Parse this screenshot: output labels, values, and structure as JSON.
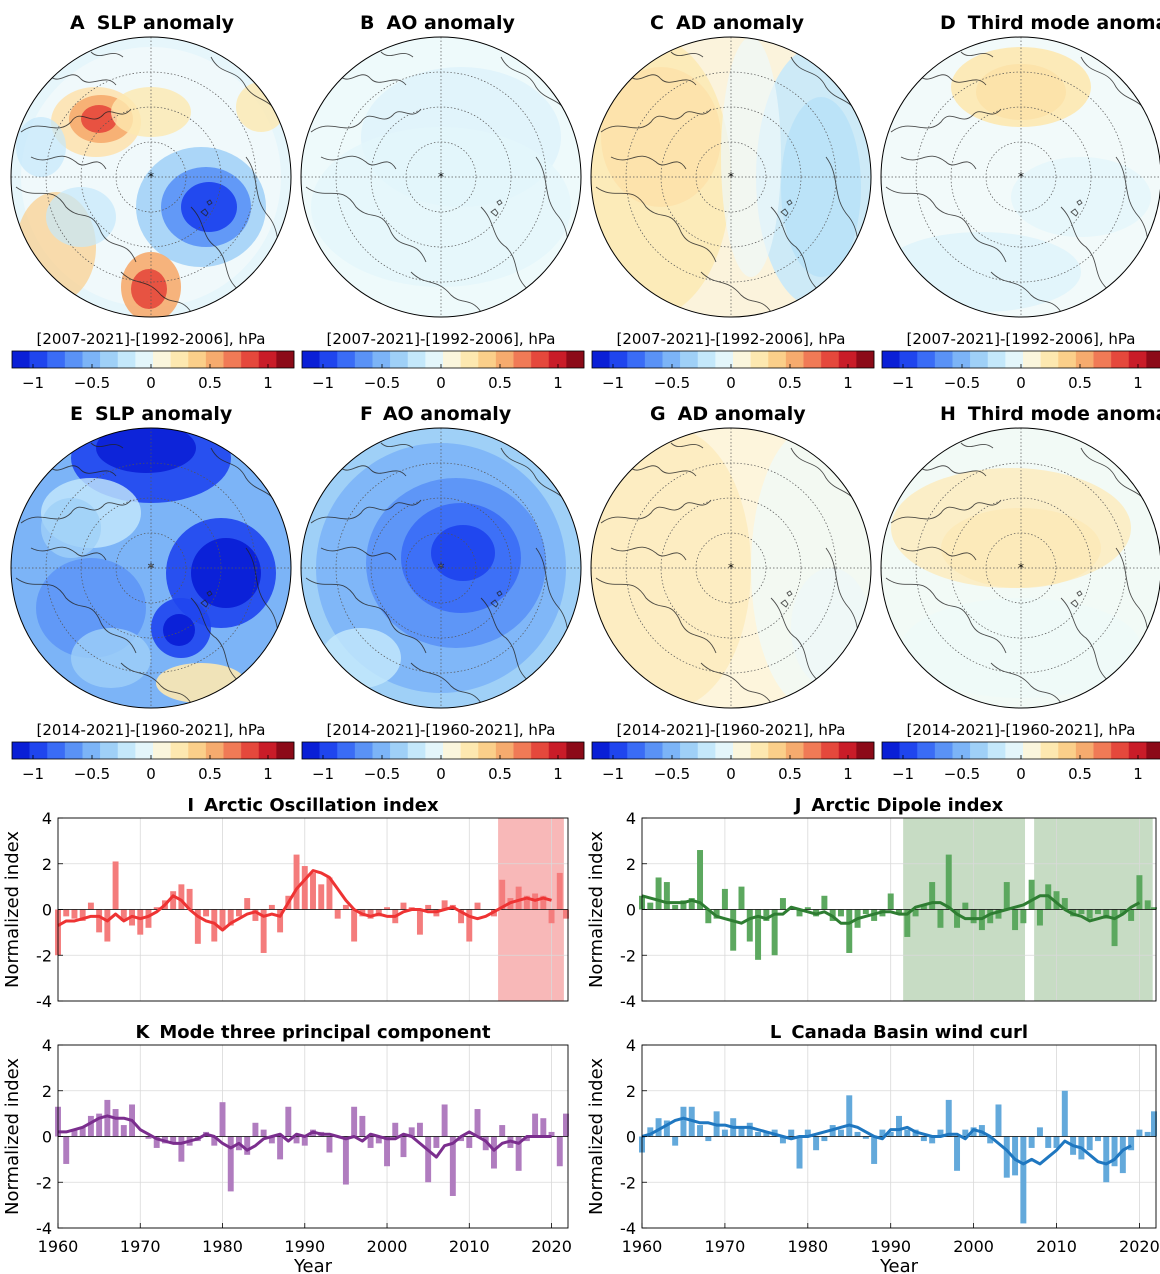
{
  "colorbar_ticks": [
    "−1",
    "−0.5",
    "0",
    "0.5",
    "1"
  ],
  "colorbar_colors": [
    "#0a1fd6",
    "#1f45ee",
    "#3a6cf6",
    "#5a92f6",
    "#7cb4f7",
    "#9fd0f7",
    "#c4e8fb",
    "#e4f6fb",
    "#fbf6dd",
    "#fde8b0",
    "#fbcf8a",
    "#f6ab6e",
    "#f07a56",
    "#e5483c",
    "#c91c28",
    "#8c0a18"
  ],
  "maps": [
    {
      "id": "A",
      "letter": "A",
      "title": "SLP anomaly",
      "caption": "[2007-2021]-[1992-2006], hPa",
      "center_marker": "black-star"
    },
    {
      "id": "B",
      "letter": "B",
      "title": "AO anomaly",
      "caption": "[2007-2021]-[1992-2006], hPa",
      "center_marker": "black-star"
    },
    {
      "id": "C",
      "letter": "C",
      "title": "AD anomaly",
      "caption": "[2007-2021]-[1992-2006], hPa",
      "center_marker": "black-star"
    },
    {
      "id": "D",
      "letter": "D",
      "title": "Third mode anomaly",
      "caption": "[2007-2021]-[1992-2006], hPa",
      "center_marker": "black-star"
    },
    {
      "id": "E",
      "letter": "E",
      "title": "SLP anomaly",
      "caption": "[2014-2021]-[1960-2021], hPa",
      "center_marker": "white-star"
    },
    {
      "id": "F",
      "letter": "F",
      "title": "AO anomaly",
      "caption": "[2014-2021]-[1960-2021], hPa",
      "center_marker": "white-star"
    },
    {
      "id": "G",
      "letter": "G",
      "title": "AD anomaly",
      "caption": "[2014-2021]-[1960-2021], hPa",
      "center_marker": "black-star"
    },
    {
      "id": "H",
      "letter": "H",
      "title": "Third mode anomaly",
      "caption": "[2014-2021]-[1960-2021], hPa",
      "center_marker": "black-star"
    }
  ],
  "chart_data": [
    {
      "type": "bar",
      "letter": "I",
      "title": "Arctic Oscillation index",
      "ylabel": "Normalized index",
      "xlabel": "",
      "color": "#ee3333",
      "bar_color": "#f47c7c",
      "highlight_color": "#f8b8b8",
      "highlight_ranges": [
        [
          2013.5,
          2021.5
        ]
      ],
      "x": [
        1960,
        1961,
        1962,
        1963,
        1964,
        1965,
        1966,
        1967,
        1968,
        1969,
        1970,
        1971,
        1972,
        1973,
        1974,
        1975,
        1976,
        1977,
        1978,
        1979,
        1980,
        1981,
        1982,
        1983,
        1984,
        1985,
        1986,
        1987,
        1988,
        1989,
        1990,
        1991,
        1992,
        1993,
        1994,
        1995,
        1996,
        1997,
        1998,
        1999,
        2000,
        2001,
        2002,
        2003,
        2004,
        2005,
        2006,
        2007,
        2008,
        2009,
        2010,
        2011,
        2012,
        2013,
        2014,
        2015,
        2016,
        2017,
        2018,
        2019,
        2020,
        2021
      ],
      "values": [
        -2.0,
        -0.3,
        -0.4,
        -0.5,
        0.3,
        -1.0,
        -1.4,
        2.1,
        -0.5,
        -0.7,
        -1.1,
        -0.8,
        0.1,
        0.4,
        0.8,
        1.1,
        0.9,
        -1.5,
        -0.3,
        -1.4,
        -0.9,
        -0.7,
        -0.3,
        0.5,
        -0.5,
        -1.9,
        0.2,
        -1.0,
        0.6,
        2.4,
        1.9,
        1.6,
        1.1,
        1.4,
        -0.4,
        0.2,
        -1.4,
        -0.3,
        -0.4,
        -0.3,
        0.1,
        -0.6,
        0.3,
        0.1,
        -1.1,
        0.2,
        -0.3,
        0.4,
        0.2,
        -0.6,
        -1.4,
        0.3,
        0.0,
        -0.3,
        1.3,
        0.5,
        1.0,
        0.6,
        0.7,
        0.6,
        -0.6,
        1.6
      ],
      "extra_bar": {
        "x": 2022,
        "value": -0.4
      },
      "smooth": [
        -0.7,
        -0.5,
        -0.5,
        -0.4,
        -0.3,
        -0.3,
        -0.5,
        -0.2,
        -0.5,
        -0.3,
        -0.4,
        -0.3,
        -0.1,
        0.2,
        0.6,
        0.4,
        0.0,
        -0.3,
        -0.5,
        -0.6,
        -0.9,
        -0.6,
        -0.4,
        -0.2,
        -0.1,
        -0.3,
        -0.2,
        -0.3,
        0.3,
        0.9,
        1.3,
        1.7,
        1.6,
        1.4,
        0.9,
        0.4,
        0.0,
        -0.2,
        -0.3,
        -0.2,
        -0.3,
        -0.3,
        -0.1,
        0.0,
        0.0,
        -0.1,
        -0.1,
        0.0,
        0.1,
        -0.1,
        -0.3,
        -0.4,
        -0.3,
        -0.1,
        0.1,
        0.3,
        0.4,
        0.5,
        0.4,
        0.5,
        0.4
      ],
      "smooth_x0": 1960,
      "ylim": [
        -4,
        4
      ],
      "yticks": [
        -4,
        -2,
        0,
        2,
        4
      ],
      "xlim": [
        1960,
        2022
      ],
      "xticks": [],
      "show_xticks": false
    },
    {
      "type": "bar",
      "letter": "J",
      "title": "Arctic Dipole index",
      "ylabel": "Normalized index",
      "xlabel": "",
      "color": "#2e7d32",
      "bar_color": "#5ca85f",
      "highlight_color": "#c7dcc4",
      "highlight_ranges": [
        [
          1991.5,
          2006.2
        ],
        [
          2007.3,
          2021.6
        ]
      ],
      "x": [
        1960,
        1961,
        1962,
        1963,
        1964,
        1965,
        1966,
        1967,
        1968,
        1969,
        1970,
        1971,
        1972,
        1973,
        1974,
        1975,
        1976,
        1977,
        1978,
        1979,
        1980,
        1981,
        1982,
        1983,
        1984,
        1985,
        1986,
        1987,
        1988,
        1989,
        1990,
        1991,
        1992,
        1993,
        1994,
        1995,
        1996,
        1997,
        1998,
        1999,
        2000,
        2001,
        2002,
        2003,
        2004,
        2005,
        2006,
        2007,
        2008,
        2009,
        2010,
        2011,
        2012,
        2013,
        2014,
        2015,
        2016,
        2017,
        2018,
        2019,
        2020,
        2021
      ],
      "values": [
        0.6,
        0.3,
        1.4,
        1.2,
        0.2,
        0.4,
        0.5,
        2.6,
        -0.6,
        -0.4,
        0.9,
        -1.8,
        1.0,
        -1.4,
        -2.2,
        -0.5,
        -2.0,
        0.5,
        0.0,
        -0.3,
        0.1,
        -0.3,
        0.6,
        -0.5,
        -0.3,
        -1.9,
        -0.8,
        -0.2,
        -0.5,
        -0.3,
        0.7,
        -0.2,
        -1.2,
        -0.3,
        0.2,
        1.2,
        -0.8,
        2.4,
        -0.8,
        0.3,
        -0.6,
        -0.9,
        -0.6,
        -0.4,
        1.2,
        -0.9,
        -0.6,
        1.3,
        -0.7,
        1.1,
        0.8,
        0.5,
        -0.3,
        -0.2,
        -0.4,
        -0.2,
        -0.4,
        -1.6,
        -0.2,
        -0.5,
        1.5,
        0.4
      ],
      "extra_bar": {
        "x": 2022,
        "value": 0.1
      },
      "smooth": [
        0.6,
        0.5,
        0.4,
        0.3,
        0.3,
        0.3,
        0.4,
        0.3,
        0.0,
        -0.3,
        -0.4,
        -0.5,
        -0.6,
        -0.4,
        -0.3,
        -0.4,
        -0.2,
        -0.2,
        0.1,
        0.0,
        -0.1,
        -0.2,
        -0.1,
        -0.3,
        -0.6,
        -0.6,
        -0.4,
        -0.3,
        -0.2,
        -0.1,
        -0.1,
        -0.2,
        -0.2,
        0.1,
        0.2,
        0.3,
        0.3,
        0.1,
        -0.2,
        -0.4,
        -0.4,
        -0.4,
        -0.2,
        -0.1,
        0.0,
        0.1,
        0.2,
        0.4,
        0.6,
        0.6,
        0.3,
        0.0,
        -0.2,
        -0.3,
        -0.5,
        -0.4,
        -0.3,
        -0.4,
        -0.2,
        0.1,
        0.3
      ],
      "smooth_x0": 1960,
      "ylim": [
        -4,
        4
      ],
      "yticks": [
        -4,
        -2,
        0,
        2,
        4
      ],
      "xlim": [
        1960,
        2022
      ],
      "xticks": [],
      "show_xticks": false
    },
    {
      "type": "bar",
      "letter": "K",
      "title": "Mode three principal component",
      "ylabel": "Normalized index",
      "xlabel": "Year",
      "color": "#7b2e8e",
      "bar_color": "#b07cbf",
      "highlight_color": "",
      "highlight_ranges": [],
      "x": [
        1960,
        1961,
        1962,
        1963,
        1964,
        1965,
        1966,
        1967,
        1968,
        1969,
        1970,
        1971,
        1972,
        1973,
        1974,
        1975,
        1976,
        1977,
        1978,
        1979,
        1980,
        1981,
        1982,
        1983,
        1984,
        1985,
        1986,
        1987,
        1988,
        1989,
        1990,
        1991,
        1992,
        1993,
        1994,
        1995,
        1996,
        1997,
        1998,
        1999,
        2000,
        2001,
        2002,
        2003,
        2004,
        2005,
        2006,
        2007,
        2008,
        2009,
        2010,
        2011,
        2012,
        2013,
        2014,
        2015,
        2016,
        2017,
        2018,
        2019,
        2020,
        2021
      ],
      "values": [
        1.3,
        -1.2,
        0.3,
        0.4,
        0.9,
        1.0,
        1.6,
        1.2,
        0.5,
        1.4,
        0.0,
        -0.1,
        -0.5,
        -0.3,
        -0.3,
        -1.1,
        -0.4,
        -0.2,
        0.2,
        -0.4,
        1.5,
        -2.4,
        -0.6,
        -0.8,
        0.6,
        0.3,
        -0.3,
        -1.0,
        1.3,
        -0.3,
        -0.4,
        0.3,
        0.2,
        -0.7,
        0.0,
        -2.1,
        1.3,
        0.9,
        -0.5,
        -0.3,
        -1.3,
        0.6,
        -0.9,
        0.4,
        0.6,
        -2.0,
        -0.5,
        1.4,
        -2.6,
        -0.2,
        -0.5,
        1.2,
        -0.6,
        -1.4,
        0.5,
        -0.5,
        -1.5,
        -0.2,
        1.0,
        0.8,
        0.2,
        -1.3
      ],
      "extra_bar": {
        "x": 2022,
        "value": 1.0
      },
      "smooth": [
        0.2,
        0.2,
        0.3,
        0.4,
        0.6,
        0.8,
        0.9,
        0.8,
        0.8,
        0.7,
        0.3,
        0.1,
        -0.1,
        -0.2,
        -0.3,
        -0.3,
        -0.2,
        -0.1,
        0.1,
        0.0,
        -0.3,
        -0.5,
        -0.3,
        -0.6,
        -0.4,
        -0.1,
        0.0,
        0.1,
        -0.2,
        0.1,
        0.0,
        0.2,
        0.1,
        0.1,
        0.0,
        -0.1,
        0.0,
        -0.2,
        0.1,
        0.0,
        -0.1,
        -0.1,
        0.1,
        0.0,
        -0.3,
        -0.6,
        -0.9,
        -0.4,
        -0.3,
        0.0,
        0.2,
        0.0,
        -0.2,
        -0.6,
        -0.3,
        -0.2,
        -0.3,
        0.0,
        0.0,
        0.0,
        0.0
      ],
      "smooth_x0": 1960,
      "ylim": [
        -4,
        4
      ],
      "yticks": [
        -4,
        -2,
        0,
        2,
        4
      ],
      "xlim": [
        1960,
        2022
      ],
      "xticks": [
        1960,
        1970,
        1980,
        1990,
        2000,
        2010,
        2020
      ],
      "show_xticks": true
    },
    {
      "type": "bar",
      "letter": "L",
      "title": "Canada Basin wind curl",
      "ylabel": "Normalized index",
      "xlabel": "Year",
      "color": "#1f77c0",
      "bar_color": "#63a9db",
      "highlight_color": "",
      "highlight_ranges": [],
      "x": [
        1960,
        1961,
        1962,
        1963,
        1964,
        1965,
        1966,
        1967,
        1968,
        1969,
        1970,
        1971,
        1972,
        1973,
        1974,
        1975,
        1976,
        1977,
        1978,
        1979,
        1980,
        1981,
        1982,
        1983,
        1984,
        1985,
        1986,
        1987,
        1988,
        1989,
        1990,
        1991,
        1992,
        1993,
        1994,
        1995,
        1996,
        1997,
        1998,
        1999,
        2000,
        2001,
        2002,
        2003,
        2004,
        2005,
        2006,
        2007,
        2008,
        2009,
        2010,
        2011,
        2012,
        2013,
        2014,
        2015,
        2016,
        2017,
        2018,
        2019,
        2020,
        2021
      ],
      "values": [
        -0.7,
        0.4,
        0.8,
        0.7,
        -0.4,
        1.3,
        1.3,
        0.5,
        -0.2,
        1.1,
        0.3,
        0.8,
        0.4,
        0.6,
        0.2,
        0.2,
        0.3,
        -0.3,
        0.3,
        -1.4,
        0.3,
        -0.6,
        -0.2,
        0.5,
        0.3,
        1.8,
        0.2,
        -0.1,
        -1.2,
        0.3,
        0.2,
        0.9,
        0.3,
        0.3,
        -0.2,
        -0.3,
        0.3,
        1.6,
        -1.5,
        0.3,
        0.4,
        0.5,
        -0.3,
        1.4,
        -1.8,
        -1.7,
        -3.8,
        -0.5,
        0.4,
        -0.5,
        -0.5,
        2.0,
        -0.8,
        -1.0,
        -0.6,
        -0.2,
        -2.0,
        -1.3,
        -1.6,
        -0.6,
        0.3,
        0.2
      ],
      "extra_bar": {
        "x": 2022,
        "value": 1.1
      },
      "smooth": [
        0.0,
        0.1,
        0.3,
        0.5,
        0.7,
        0.8,
        0.7,
        0.6,
        0.6,
        0.5,
        0.5,
        0.4,
        0.4,
        0.4,
        0.3,
        0.2,
        0.1,
        0.0,
        -0.1,
        0.0,
        0.0,
        0.1,
        0.2,
        0.3,
        0.4,
        0.5,
        0.4,
        0.2,
        0.0,
        -0.1,
        0.3,
        0.3,
        0.4,
        0.2,
        0.1,
        0.0,
        0.0,
        0.1,
        0.1,
        -0.1,
        0.3,
        0.2,
        0.0,
        -0.3,
        -0.6,
        -1.0,
        -1.2,
        -1.0,
        -1.2,
        -0.9,
        -0.6,
        -0.2,
        -0.4,
        -0.5,
        -0.8,
        -1.1,
        -1.2,
        -1.0,
        -0.6,
        -0.4
      ],
      "smooth_x0": 1960,
      "ylim": [
        -4,
        4
      ],
      "yticks": [
        -4,
        -2,
        0,
        2,
        4
      ],
      "xlim": [
        1960,
        2022
      ],
      "xticks": [
        1960,
        1970,
        1980,
        1990,
        2000,
        2010,
        2020
      ],
      "show_xticks": true
    }
  ]
}
